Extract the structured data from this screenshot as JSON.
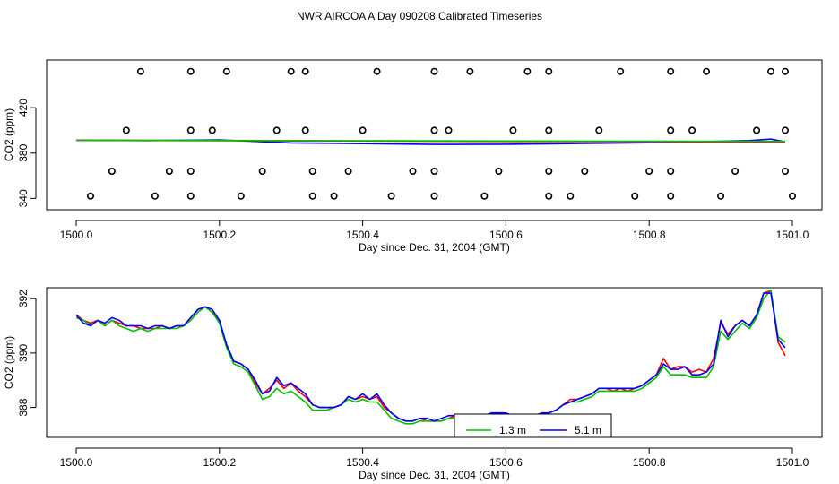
{
  "figure_title": "NWR AIRCOA A  Day 090208  Calibrated Timeseries",
  "colors": {
    "red": "#ff0000",
    "green": "#00c000",
    "blue": "#0000ff",
    "axis": "#000000"
  },
  "chart_data": [
    {
      "type": "line",
      "title": "",
      "xlabel": "Day since Dec. 31, 2004 (GMT)",
      "ylabel": "CO2 (ppm)",
      "xlim": [
        1500.0,
        1501.0
      ],
      "ylim": [
        330,
        462
      ],
      "x_ticks": [
        1500.0,
        1500.2,
        1500.4,
        1500.6,
        1500.8,
        1501.0
      ],
      "x_tick_labels": [
        "1500.0",
        "1500.2",
        "1500.4",
        "1500.6",
        "1500.8",
        "1501.0"
      ],
      "y_ticks": [
        340,
        380,
        420
      ],
      "y_tick_labels": [
        "340",
        "380",
        "420"
      ],
      "series": [
        {
          "name": "blue",
          "color": "#0000ff",
          "x": [
            1500.0,
            1500.1,
            1500.2,
            1500.3,
            1500.4,
            1500.5,
            1500.6,
            1500.7,
            1500.8,
            1500.9,
            1500.94,
            1500.97,
            1500.99
          ],
          "y": [
            391.4,
            391.0,
            391.6,
            389.0,
            388.3,
            387.6,
            387.8,
            388.4,
            389.1,
            390.5,
            391.0,
            392.3,
            390.0
          ]
        },
        {
          "name": "red",
          "color": "#ff0000",
          "x": [
            1500.0,
            1500.99
          ],
          "y": [
            391.3,
            389.5
          ]
        },
        {
          "name": "green",
          "color": "#00c000",
          "x": [
            1500.0,
            1500.99
          ],
          "y": [
            391.3,
            390.2
          ]
        }
      ],
      "scatter_series": [
        {
          "name": "level-452",
          "y": 452,
          "x": [
            1500.09,
            1500.16,
            1500.21,
            1500.3,
            1500.32,
            1500.42,
            1500.5,
            1500.55,
            1500.63,
            1500.66,
            1500.76,
            1500.83,
            1500.88,
            1500.97,
            1500.99
          ]
        },
        {
          "name": "level-400",
          "y": 400,
          "x": [
            1500.07,
            1500.16,
            1500.19,
            1500.28,
            1500.32,
            1500.4,
            1500.5,
            1500.52,
            1500.61,
            1500.66,
            1500.73,
            1500.83,
            1500.86,
            1500.95,
            1500.99
          ]
        },
        {
          "name": "level-364",
          "y": 364,
          "x": [
            1500.05,
            1500.13,
            1500.16,
            1500.26,
            1500.33,
            1500.38,
            1500.47,
            1500.5,
            1500.59,
            1500.66,
            1500.71,
            1500.8,
            1500.83,
            1500.92,
            1500.99
          ]
        },
        {
          "name": "level-342",
          "y": 342,
          "x": [
            1500.02,
            1500.11,
            1500.16,
            1500.23,
            1500.33,
            1500.36,
            1500.44,
            1500.5,
            1500.57,
            1500.66,
            1500.69,
            1500.78,
            1500.83,
            1500.9,
            1501.0
          ]
        }
      ]
    },
    {
      "type": "line",
      "title": "",
      "xlabel": "Day since Dec. 31, 2004 (GMT)",
      "ylabel": "CO2 (ppm)",
      "xlim": [
        1500.0,
        1501.0
      ],
      "ylim": [
        386.9,
        392.4
      ],
      "x_ticks": [
        1500.0,
        1500.2,
        1500.4,
        1500.6,
        1500.8,
        1501.0
      ],
      "x_tick_labels": [
        "1500.0",
        "1500.2",
        "1500.4",
        "1500.6",
        "1500.8",
        "1501.0"
      ],
      "y_ticks": [
        388,
        390,
        392
      ],
      "y_tick_labels": [
        "388",
        "390",
        "392"
      ],
      "legend": {
        "position": "bottom-center",
        "entries": [
          {
            "label": "1.3 m",
            "color": "#00c000"
          },
          {
            "label": "5.1 m",
            "color": "#0000ff"
          }
        ]
      },
      "series": [
        {
          "name": "red",
          "color": "#ff0000",
          "x": [
            1500.0,
            1500.01,
            1500.02,
            1500.03,
            1500.04,
            1500.05,
            1500.06,
            1500.07,
            1500.08,
            1500.09,
            1500.1,
            1500.11,
            1500.12,
            1500.13,
            1500.14,
            1500.15,
            1500.16,
            1500.17,
            1500.18,
            1500.19,
            1500.2,
            1500.21,
            1500.22,
            1500.23,
            1500.24,
            1500.25,
            1500.26,
            1500.27,
            1500.28,
            1500.29,
            1500.3,
            1500.31,
            1500.32,
            1500.33,
            1500.34,
            1500.35,
            1500.36,
            1500.37,
            1500.38,
            1500.39,
            1500.4,
            1500.41,
            1500.42,
            1500.43,
            1500.44,
            1500.45,
            1500.46,
            1500.47,
            1500.48,
            1500.49,
            1500.5,
            1500.51,
            1500.52,
            1500.53,
            1500.54,
            1500.55,
            1500.56,
            1500.57,
            1500.58,
            1500.59,
            1500.6,
            1500.61,
            1500.62,
            1500.63,
            1500.64,
            1500.65,
            1500.66,
            1500.67,
            1500.68,
            1500.69,
            1500.7,
            1500.71,
            1500.72,
            1500.73,
            1500.74,
            1500.75,
            1500.76,
            1500.77,
            1500.78,
            1500.79,
            1500.8,
            1500.81,
            1500.82,
            1500.83,
            1500.84,
            1500.85,
            1500.86,
            1500.87,
            1500.88,
            1500.89,
            1500.9,
            1500.91,
            1500.92,
            1500.93,
            1500.94,
            1500.95,
            1500.96,
            1500.97,
            1500.98,
            1500.99
          ],
          "y": [
            391.4,
            391.2,
            391.1,
            391.2,
            391.0,
            391.2,
            391.1,
            391.0,
            391.0,
            390.9,
            390.9,
            390.9,
            391.0,
            390.9,
            391.0,
            391.0,
            391.3,
            391.6,
            391.7,
            391.5,
            391.2,
            390.3,
            389.7,
            389.6,
            389.4,
            388.9,
            388.5,
            388.7,
            389.0,
            388.7,
            388.9,
            388.6,
            388.4,
            388.1,
            388.0,
            388.0,
            388.0,
            388.1,
            388.4,
            388.3,
            388.4,
            388.3,
            388.4,
            388.0,
            387.8,
            387.6,
            387.5,
            387.5,
            387.6,
            387.5,
            387.5,
            387.5,
            387.6,
            387.7,
            387.7,
            387.6,
            387.7,
            387.7,
            387.8,
            387.8,
            387.7,
            387.7,
            387.7,
            387.6,
            387.6,
            387.7,
            387.8,
            387.9,
            388.1,
            388.3,
            388.3,
            388.4,
            388.5,
            388.7,
            388.7,
            388.6,
            388.7,
            388.6,
            388.7,
            388.8,
            389.0,
            389.2,
            389.8,
            389.4,
            389.5,
            389.5,
            389.3,
            389.4,
            389.3,
            389.8,
            391.1,
            390.7,
            391.0,
            391.2,
            391.0,
            391.4,
            392.2,
            392.3,
            390.4,
            389.9
          ]
        },
        {
          "name": "green",
          "color": "#00c000",
          "x": [
            1500.0,
            1500.01,
            1500.02,
            1500.03,
            1500.04,
            1500.05,
            1500.06,
            1500.07,
            1500.08,
            1500.09,
            1500.1,
            1500.11,
            1500.12,
            1500.13,
            1500.14,
            1500.15,
            1500.16,
            1500.17,
            1500.18,
            1500.19,
            1500.2,
            1500.21,
            1500.22,
            1500.23,
            1500.24,
            1500.25,
            1500.26,
            1500.27,
            1500.28,
            1500.29,
            1500.3,
            1500.31,
            1500.32,
            1500.33,
            1500.34,
            1500.35,
            1500.36,
            1500.37,
            1500.38,
            1500.39,
            1500.4,
            1500.41,
            1500.42,
            1500.43,
            1500.44,
            1500.45,
            1500.46,
            1500.47,
            1500.48,
            1500.49,
            1500.5,
            1500.51,
            1500.52,
            1500.53,
            1500.54,
            1500.55,
            1500.56,
            1500.57,
            1500.58,
            1500.59,
            1500.6,
            1500.61,
            1500.62,
            1500.63,
            1500.64,
            1500.65,
            1500.66,
            1500.67,
            1500.68,
            1500.69,
            1500.7,
            1500.71,
            1500.72,
            1500.73,
            1500.74,
            1500.75,
            1500.76,
            1500.77,
            1500.78,
            1500.79,
            1500.8,
            1500.81,
            1500.82,
            1500.83,
            1500.84,
            1500.85,
            1500.86,
            1500.87,
            1500.88,
            1500.89,
            1500.9,
            1500.91,
            1500.92,
            1500.93,
            1500.94,
            1500.95,
            1500.96,
            1500.97,
            1500.98,
            1500.99
          ],
          "y": [
            391.3,
            391.2,
            391.0,
            391.2,
            391.0,
            391.2,
            391.0,
            390.9,
            390.8,
            390.9,
            390.8,
            390.9,
            390.9,
            390.9,
            390.9,
            391.0,
            391.2,
            391.5,
            391.7,
            391.5,
            391.1,
            390.2,
            389.6,
            389.5,
            389.3,
            388.8,
            388.3,
            388.4,
            388.7,
            388.5,
            388.6,
            388.4,
            388.2,
            387.9,
            387.9,
            387.9,
            388.0,
            388.1,
            388.3,
            388.2,
            388.3,
            388.2,
            388.2,
            387.9,
            387.6,
            387.5,
            387.4,
            387.4,
            387.5,
            387.5,
            387.5,
            387.5,
            387.6,
            387.6,
            387.6,
            387.6,
            387.6,
            387.6,
            387.7,
            387.7,
            387.6,
            387.6,
            387.6,
            387.6,
            387.6,
            387.7,
            387.8,
            387.9,
            388.1,
            388.2,
            388.2,
            388.3,
            388.4,
            388.6,
            388.6,
            388.6,
            388.6,
            388.6,
            388.6,
            388.7,
            388.9,
            389.1,
            389.5,
            389.2,
            389.2,
            389.2,
            389.1,
            389.1,
            389.1,
            389.5,
            390.8,
            390.5,
            390.8,
            391.1,
            390.9,
            391.3,
            392.0,
            392.3,
            390.6,
            390.4
          ]
        },
        {
          "name": "blue",
          "color": "#0000ff",
          "x": [
            1500.0,
            1500.01,
            1500.02,
            1500.03,
            1500.04,
            1500.05,
            1500.06,
            1500.07,
            1500.08,
            1500.09,
            1500.1,
            1500.11,
            1500.12,
            1500.13,
            1500.14,
            1500.15,
            1500.16,
            1500.17,
            1500.18,
            1500.19,
            1500.2,
            1500.21,
            1500.22,
            1500.23,
            1500.24,
            1500.25,
            1500.26,
            1500.27,
            1500.28,
            1500.29,
            1500.3,
            1500.31,
            1500.32,
            1500.33,
            1500.34,
            1500.35,
            1500.36,
            1500.37,
            1500.38,
            1500.39,
            1500.4,
            1500.41,
            1500.42,
            1500.43,
            1500.44,
            1500.45,
            1500.46,
            1500.47,
            1500.48,
            1500.49,
            1500.5,
            1500.51,
            1500.52,
            1500.53,
            1500.54,
            1500.55,
            1500.56,
            1500.57,
            1500.58,
            1500.59,
            1500.6,
            1500.61,
            1500.62,
            1500.63,
            1500.64,
            1500.65,
            1500.66,
            1500.67,
            1500.68,
            1500.69,
            1500.7,
            1500.71,
            1500.72,
            1500.73,
            1500.74,
            1500.75,
            1500.76,
            1500.77,
            1500.78,
            1500.79,
            1500.8,
            1500.81,
            1500.82,
            1500.83,
            1500.84,
            1500.85,
            1500.86,
            1500.87,
            1500.88,
            1500.89,
            1500.9,
            1500.91,
            1500.92,
            1500.93,
            1500.94,
            1500.95,
            1500.96,
            1500.97,
            1500.98,
            1500.99
          ],
          "y": [
            391.4,
            391.1,
            391.0,
            391.2,
            391.1,
            391.3,
            391.2,
            391.0,
            391.0,
            391.0,
            390.9,
            391.0,
            391.0,
            390.9,
            391.0,
            391.0,
            391.3,
            391.6,
            391.7,
            391.6,
            391.2,
            390.3,
            389.7,
            389.6,
            389.4,
            389.0,
            388.5,
            388.6,
            389.1,
            388.8,
            388.9,
            388.7,
            388.5,
            388.1,
            388.0,
            388.0,
            388.0,
            388.1,
            388.4,
            388.3,
            388.5,
            388.3,
            388.5,
            388.1,
            387.8,
            387.6,
            387.5,
            387.5,
            387.6,
            387.6,
            387.5,
            387.6,
            387.7,
            387.7,
            387.7,
            387.7,
            387.7,
            387.7,
            387.8,
            387.8,
            387.8,
            387.7,
            387.7,
            387.7,
            387.7,
            387.8,
            387.8,
            387.9,
            388.1,
            388.2,
            388.3,
            388.4,
            388.5,
            388.7,
            388.7,
            388.7,
            388.7,
            388.7,
            388.7,
            388.8,
            389.0,
            389.2,
            389.6,
            389.4,
            389.4,
            389.5,
            389.2,
            389.2,
            389.3,
            389.6,
            391.2,
            390.6,
            391.0,
            391.2,
            391.0,
            391.4,
            392.2,
            392.2,
            390.5,
            390.2
          ]
        }
      ]
    }
  ]
}
